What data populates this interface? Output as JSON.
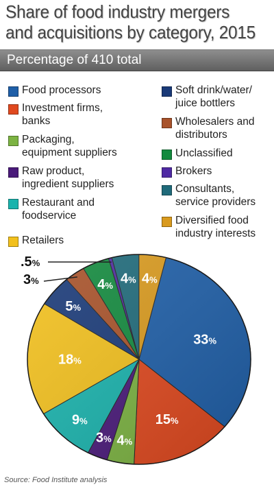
{
  "title_line1": "Share of food industry mergers",
  "title_line2": "and acquisitions by category, 2015",
  "subtitle": "Percentage of 410 total",
  "source": "Source: Food Institute analysis",
  "chart_data": {
    "type": "pie",
    "title": "Share of food industry mergers and acquisitions by category, 2015",
    "subtitle": "Percentage of 410 total",
    "unit": "%",
    "slices": [
      {
        "name": "Food processors",
        "value": 33,
        "label": "33",
        "color": "#1f5fa8"
      },
      {
        "name": "Investment firms, banks",
        "value": 15,
        "label": "15",
        "color": "#e0491f"
      },
      {
        "name": "Packaging, equipment suppliers",
        "value": 4,
        "label": "4",
        "color": "#7cb342"
      },
      {
        "name": "Raw product, ingredient suppliers",
        "value": 3,
        "label": "3",
        "color": "#4a1a7a"
      },
      {
        "name": "Restaurant and foodservice",
        "value": 9,
        "label": "9",
        "color": "#1ab3ad"
      },
      {
        "name": "Retailers",
        "value": 18,
        "label": "18",
        "color": "#f2c01d"
      },
      {
        "name": "Soft drink/water/juice bottlers",
        "value": 5,
        "label": "5",
        "color": "#1a3a78"
      },
      {
        "name": "Wholesalers and distributors",
        "value": 3,
        "label": "3",
        "color": "#a8522a"
      },
      {
        "name": "Unclassified",
        "value": 4,
        "label": "4",
        "color": "#138a3e"
      },
      {
        "name": "Brokers",
        "value": 0.5,
        "label": ".5",
        "color": "#4f2aa3"
      },
      {
        "name": "Consultants, service providers",
        "value": 4,
        "label": "4",
        "color": "#1f6a7a"
      },
      {
        "name": "Diversified food industry interests",
        "value": 4,
        "label": "4",
        "color": "#d99a1e"
      }
    ]
  },
  "legend": [
    {
      "label": "Food processors",
      "color": "#1f5fa8"
    },
    {
      "label": "Investment firms,\nbanks",
      "color": "#e0491f"
    },
    {
      "label": "Packaging,\nequipment suppliers",
      "color": "#7cb342"
    },
    {
      "label": "Raw product,\ningredient suppliers",
      "color": "#4a1a7a"
    },
    {
      "label": "Restaurant and\nfoodservice",
      "color": "#1ab3ad"
    },
    {
      "label": "Retailers",
      "color": "#f2c01d"
    },
    {
      "label": "Soft drink/water/\njuice bottlers",
      "color": "#1a3a78"
    },
    {
      "label": "Wholesalers and\ndistributors",
      "color": "#a8522a"
    },
    {
      "label": "Unclassified",
      "color": "#138a3e"
    },
    {
      "label": "Brokers",
      "color": "#4f2aa3"
    },
    {
      "label": "Consultants,\nservice providers",
      "color": "#1f6a7a"
    },
    {
      "label": "Diversified food\nindustry interests",
      "color": "#d99a1e"
    }
  ]
}
